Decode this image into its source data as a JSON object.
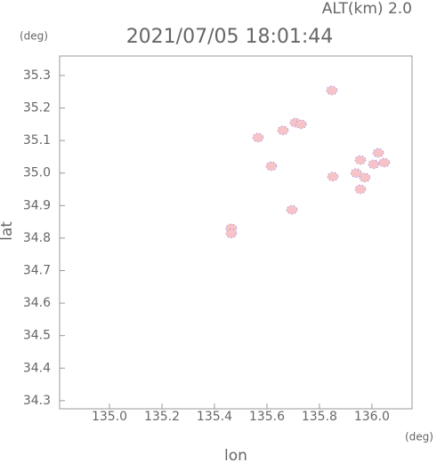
{
  "chart_data": {
    "type": "scatter",
    "title": "2021/07/05 18:01:44",
    "subtitle": "ALT(km) 2.0",
    "x_unit": "(deg)",
    "y_unit": "(deg)",
    "x_label": "lon",
    "y_label": "lat",
    "color": "#f6c3c6",
    "edge_color": "#7b74ff",
    "x": [
      135.847,
      135.566,
      135.708,
      135.73,
      135.661,
      135.617,
      135.695,
      135.464,
      135.464,
      135.851,
      135.956,
      135.973,
      135.956,
      135.94,
      136.007,
      136.047,
      136.024
    ],
    "y": [
      35.254,
      35.109,
      35.155,
      35.15,
      35.131,
      35.021,
      34.887,
      34.83,
      34.814,
      34.989,
      35.04,
      34.986,
      34.95,
      35.0,
      35.027,
      35.032,
      35.062
    ],
    "xlim": [
      134.81,
      136.153
    ],
    "ylim": [
      34.275,
      35.36
    ],
    "xticks": [
      {
        "value": 135,
        "label": "135.0"
      },
      135.2,
      135.4,
      135.6,
      135.8,
      {
        "value": 136,
        "label": "136.0"
      }
    ],
    "yticks": [
      34.3,
      34.4,
      34.5,
      34.6,
      34.7,
      34.8,
      34.9,
      {
        "value": 35,
        "label": "35.0"
      },
      35.1,
      35.2,
      35.3
    ],
    "grid": false
  }
}
